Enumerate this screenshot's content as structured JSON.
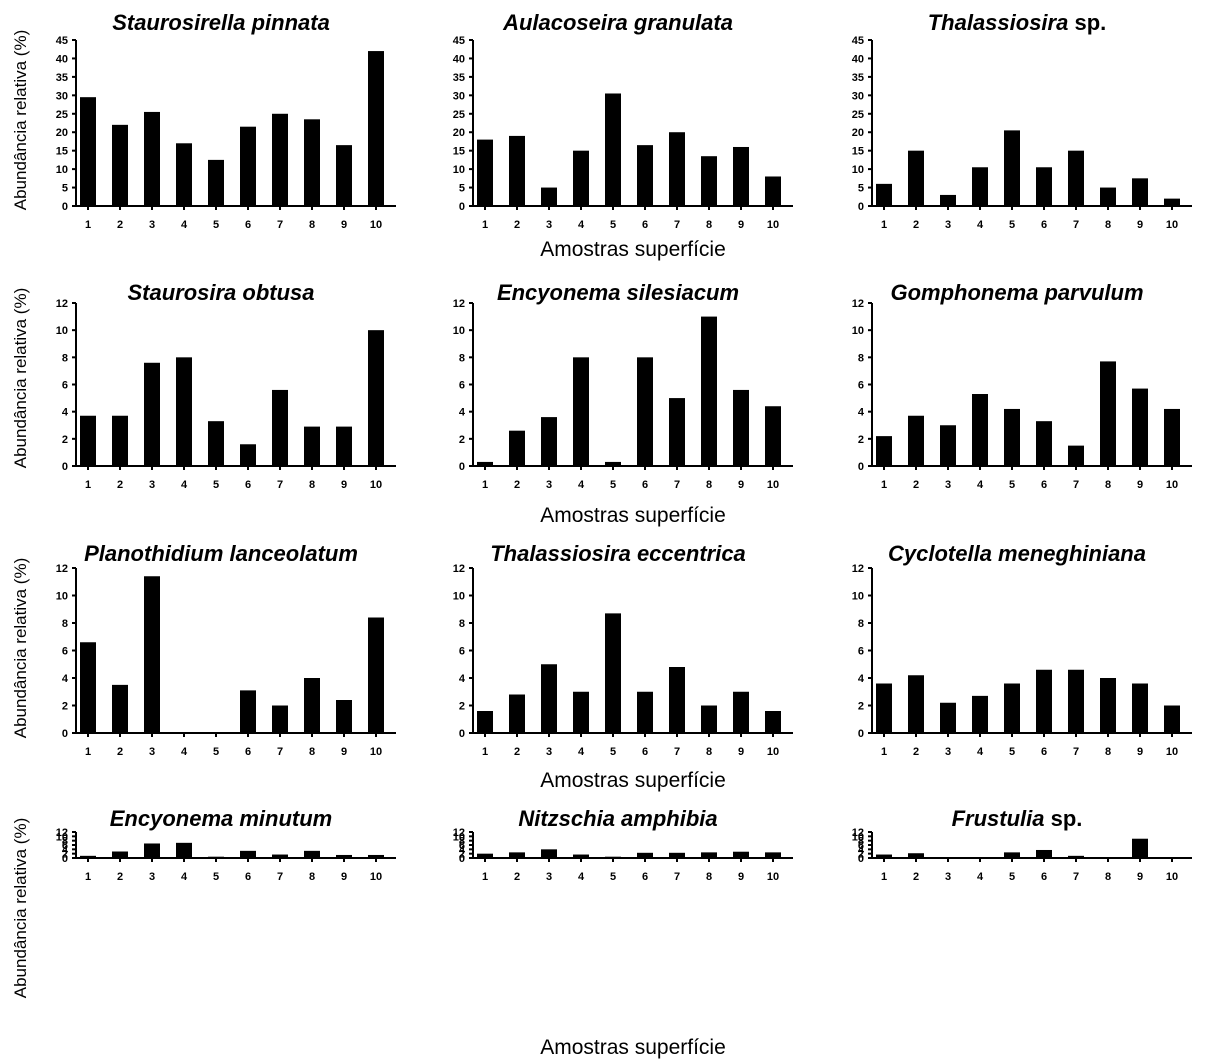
{
  "figure": {
    "ylabel": "Abundância relativa (%)",
    "xlabel": "Amostras superfície"
  },
  "chart_data": [
    {
      "type": "bar",
      "title_italic": "Staurosirella pinnata",
      "title_suffix": "",
      "ylabel": "Abundância relativa (%)",
      "xlabel": "",
      "ylim": [
        0,
        45
      ],
      "yticks": [
        0,
        5,
        10,
        15,
        20,
        25,
        30,
        35,
        40,
        45
      ],
      "categories": [
        "1",
        "2",
        "3",
        "4",
        "5",
        "6",
        "7",
        "8",
        "9",
        "10"
      ],
      "values": [
        29.5,
        22,
        25.5,
        17,
        12.5,
        21.5,
        25,
        23.5,
        16.5,
        42
      ]
    },
    {
      "type": "bar",
      "title_italic": "Aulacoseira granulata",
      "title_suffix": "",
      "ylabel": "",
      "xlabel": "Amostras superfície",
      "ylim": [
        0,
        45
      ],
      "yticks": [
        0,
        5,
        10,
        15,
        20,
        25,
        30,
        35,
        40,
        45
      ],
      "categories": [
        "1",
        "2",
        "3",
        "4",
        "5",
        "6",
        "7",
        "8",
        "9",
        "10"
      ],
      "values": [
        18,
        19,
        5,
        15,
        30.5,
        16.5,
        20,
        13.5,
        16,
        8
      ]
    },
    {
      "type": "bar",
      "title_italic": "Thalassiosira",
      "title_suffix": " sp.",
      "ylabel": "",
      "xlabel": "",
      "ylim": [
        0,
        45
      ],
      "yticks": [
        0,
        5,
        10,
        15,
        20,
        25,
        30,
        35,
        40,
        45
      ],
      "categories": [
        "1",
        "2",
        "3",
        "4",
        "5",
        "6",
        "7",
        "8",
        "9",
        "10"
      ],
      "values": [
        6,
        15,
        3,
        10.5,
        20.5,
        10.5,
        15,
        5,
        7.5,
        2
      ]
    },
    {
      "type": "bar",
      "title_italic": "Staurosira obtusa",
      "title_suffix": "",
      "ylabel": "Abundância relativa (%)",
      "xlabel": "",
      "ylim": [
        0,
        12
      ],
      "yticks": [
        0,
        2,
        4,
        6,
        8,
        10,
        12
      ],
      "categories": [
        "1",
        "2",
        "3",
        "4",
        "5",
        "6",
        "7",
        "8",
        "9",
        "10"
      ],
      "values": [
        3.7,
        3.7,
        7.6,
        8,
        3.3,
        1.6,
        5.6,
        2.9,
        2.9,
        10
      ]
    },
    {
      "type": "bar",
      "title_italic": "Encyonema  silesiacum",
      "title_suffix": "",
      "ylabel": "",
      "xlabel": "Amostras superfície",
      "ylim": [
        0,
        12
      ],
      "yticks": [
        0,
        2,
        4,
        6,
        8,
        10,
        12
      ],
      "categories": [
        "1",
        "2",
        "3",
        "4",
        "5",
        "6",
        "7",
        "8",
        "9",
        "10"
      ],
      "values": [
        0.3,
        2.6,
        3.6,
        8,
        0.3,
        8,
        5,
        11,
        5.6,
        4.4
      ]
    },
    {
      "type": "bar",
      "title_italic": "Gomphonema  parvulum",
      "title_suffix": "",
      "ylabel": "",
      "xlabel": "",
      "ylim": [
        0,
        12
      ],
      "yticks": [
        0,
        2,
        4,
        6,
        8,
        10,
        12
      ],
      "categories": [
        "1",
        "2",
        "3",
        "4",
        "5",
        "6",
        "7",
        "8",
        "9",
        "10"
      ],
      "values": [
        2.2,
        3.7,
        3,
        5.3,
        4.2,
        3.3,
        1.5,
        7.7,
        5.7,
        4.2
      ]
    },
    {
      "type": "bar",
      "title_italic": "Planothidium lanceolatum",
      "title_suffix": "",
      "ylabel": "Abundância relativa (%)",
      "xlabel": "",
      "ylim": [
        0,
        12
      ],
      "yticks": [
        0,
        2,
        4,
        6,
        8,
        10,
        12
      ],
      "categories": [
        "1",
        "2",
        "3",
        "4",
        "5",
        "6",
        "7",
        "8",
        "9",
        "10"
      ],
      "values": [
        6.6,
        3.5,
        11.4,
        0,
        0,
        3.1,
        2,
        4,
        2.4,
        8.4
      ]
    },
    {
      "type": "bar",
      "title_italic": "Thalassiosira eccentrica",
      "title_suffix": "",
      "ylabel": "",
      "xlabel": "Amostras superfície",
      "ylim": [
        0,
        12
      ],
      "yticks": [
        0,
        2,
        4,
        6,
        8,
        10,
        12
      ],
      "categories": [
        "1",
        "2",
        "3",
        "4",
        "5",
        "6",
        "7",
        "8",
        "9",
        "10"
      ],
      "values": [
        1.6,
        2.8,
        5,
        3,
        8.7,
        3,
        4.8,
        2,
        3,
        1.6
      ]
    },
    {
      "type": "bar",
      "title_italic": "Cyclotella meneghiniana",
      "title_suffix": "",
      "ylabel": "",
      "xlabel": "",
      "ylim": [
        0,
        12
      ],
      "yticks": [
        0,
        2,
        4,
        6,
        8,
        10,
        12
      ],
      "categories": [
        "1",
        "2",
        "3",
        "4",
        "5",
        "6",
        "7",
        "8",
        "9",
        "10"
      ],
      "values": [
        3.6,
        4.2,
        2.2,
        2.7,
        3.6,
        4.6,
        4.6,
        4,
        3.6,
        2
      ]
    },
    {
      "type": "bar",
      "title_italic": "Encyonema minutum",
      "title_suffix": "",
      "ylabel": "Abundância relativa (%)",
      "xlabel": "",
      "ylim": [
        0,
        12
      ],
      "yticks": [
        0,
        2,
        4,
        6,
        8,
        10,
        12
      ],
      "categories": [
        "1",
        "2",
        "3",
        "4",
        "5",
        "6",
        "7",
        "8",
        "9",
        "10"
      ],
      "values": [
        1,
        3,
        6.7,
        7,
        0.6,
        3.3,
        1.6,
        3.3,
        1.4,
        1.4
      ]
    },
    {
      "type": "bar",
      "title_italic": "Nitzschia amphibia",
      "title_suffix": "",
      "ylabel": "",
      "xlabel": "Amostras superfície",
      "ylim": [
        0,
        12
      ],
      "yticks": [
        0,
        2,
        4,
        6,
        8,
        10,
        12
      ],
      "categories": [
        "1",
        "2",
        "3",
        "4",
        "5",
        "6",
        "7",
        "8",
        "9",
        "10"
      ],
      "values": [
        2,
        2.6,
        4,
        1.6,
        0.6,
        2.4,
        2.4,
        2.6,
        2.9,
        2.6
      ]
    },
    {
      "type": "bar",
      "title_italic": "Frustulia",
      "title_suffix": " sp.",
      "ylabel": "",
      "xlabel": "",
      "ylim": [
        0,
        12
      ],
      "yticks": [
        0,
        2,
        4,
        6,
        8,
        10,
        12
      ],
      "categories": [
        "1",
        "2",
        "3",
        "4",
        "5",
        "6",
        "7",
        "8",
        "9",
        "10"
      ],
      "values": [
        1.6,
        2.2,
        0,
        0,
        2.6,
        3.7,
        1,
        0,
        8.9,
        0.3
      ]
    }
  ]
}
